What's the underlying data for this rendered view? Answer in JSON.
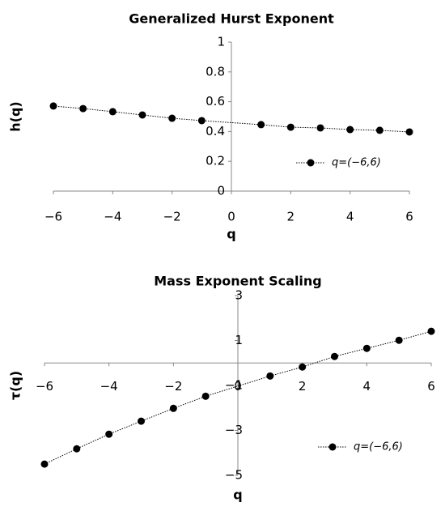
{
  "chart_data": [
    {
      "type": "line",
      "title": "Generalized Hurst Exponent",
      "x_label": "q",
      "y_label": "h(q)",
      "x": [
        -6,
        -5,
        -4,
        -3,
        -2,
        -1,
        1,
        2,
        3,
        4,
        5,
        6
      ],
      "series": [
        {
          "name": "q=(−6,6)",
          "color": "#000000",
          "values": [
            0.571,
            0.554,
            0.533,
            0.511,
            0.489,
            0.473,
            0.446,
            0.429,
            0.424,
            0.413,
            0.408,
            0.397
          ]
        }
      ],
      "xlim": [
        -6,
        6
      ],
      "xticks": [
        {
          "value": -6,
          "label": "−6"
        },
        {
          "value": -4,
          "label": "−4"
        },
        {
          "value": -2,
          "label": "−2"
        },
        0,
        2,
        4,
        6
      ],
      "ylim": [
        0,
        1
      ],
      "yticks": [
        0,
        0.2,
        0.4,
        0.6,
        0.8,
        1
      ],
      "legend": "lower right"
    },
    {
      "type": "line",
      "title": "Mass Exponent Scaling",
      "x_label": "q",
      "y_label": "τ(q)",
      "x": [
        -6,
        -5,
        -4,
        -3,
        -2,
        -1,
        1,
        2,
        3,
        4,
        5,
        6
      ],
      "series": [
        {
          "name": "q=(−6,6)",
          "color": "#000000",
          "values": [
            -4.5,
            -3.82,
            -3.17,
            -2.59,
            -2.02,
            -1.48,
            -0.58,
            -0.18,
            0.29,
            0.65,
            1.01,
            1.41
          ]
        }
      ],
      "xlim": [
        -6,
        6
      ],
      "xticks": [
        {
          "value": -6,
          "label": "−6"
        },
        {
          "value": -4,
          "label": "−4"
        },
        {
          "value": -2,
          "label": "−2"
        },
        0,
        2,
        4,
        6
      ],
      "ylim": [
        -5,
        3
      ],
      "yticks": [
        {
          "value": -5,
          "label": "−5"
        },
        {
          "value": -3,
          "label": "−3"
        },
        {
          "value": -1,
          "label": "−1"
        },
        1,
        3
      ],
      "legend": "lower right"
    }
  ]
}
